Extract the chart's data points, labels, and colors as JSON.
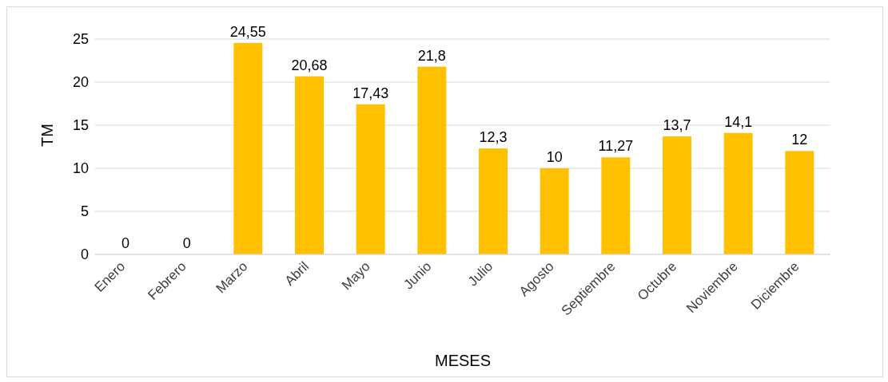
{
  "chart_data": {
    "type": "bar",
    "xlabel": "MESES",
    "ylabel": "TM",
    "categories": [
      "Enero",
      "Febrero",
      "Marzo",
      "Abril",
      "Mayo",
      "Junio",
      "Julio",
      "Agosto",
      "Septiembre",
      "Octubre",
      "Noviembre",
      "Diciembre"
    ],
    "values": [
      0,
      0,
      24.55,
      20.68,
      17.43,
      21.8,
      12.3,
      10,
      11.27,
      13.7,
      14.1,
      12
    ],
    "value_labels": [
      "0",
      "0",
      "24,55",
      "20,68",
      "17,43",
      "21,8",
      "12,3",
      "10",
      "11,27",
      "13,7",
      "14,1",
      "12"
    ],
    "color": "#ffc000",
    "ylim": [
      0,
      25
    ],
    "yticks": [
      0,
      5,
      10,
      15,
      20,
      25
    ],
    "grid": "y"
  }
}
